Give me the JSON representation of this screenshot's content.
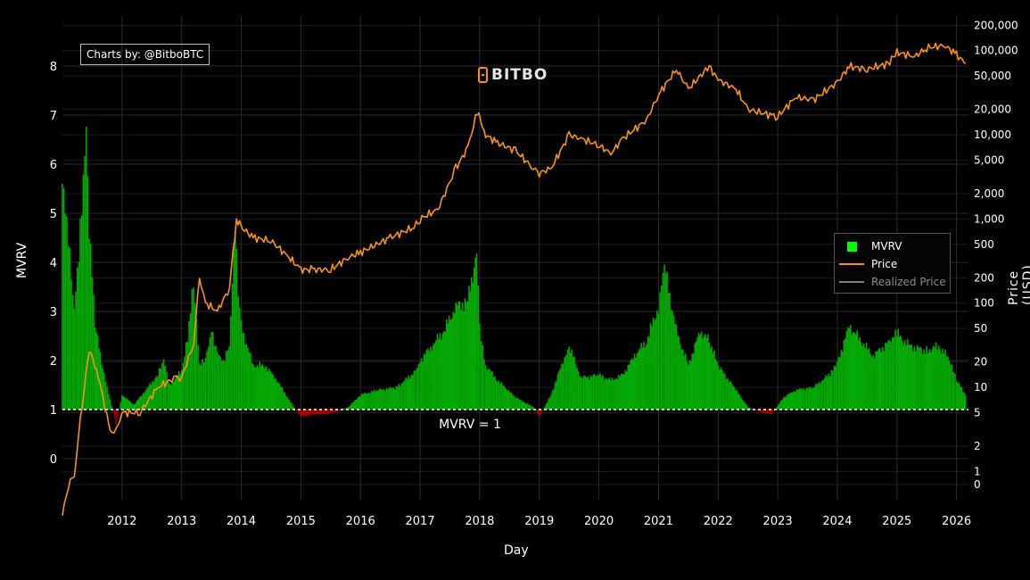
{
  "credit": "Charts by: @BitboBTC",
  "brand": "BITBO",
  "colors": {
    "mvrv_above": "#05a805",
    "mvrv_below": "#a00000",
    "price": "#f7931a",
    "realized": "#808080",
    "grid": "#2a2a2a"
  },
  "chart_data": {
    "type": "area",
    "xlabel": "Day",
    "ylabel": "MVRV",
    "y2label": "Price (USD)",
    "y_ticks": [
      "0",
      "1",
      "2",
      "3",
      "4",
      "5",
      "6",
      "7",
      "8"
    ],
    "ylim": [
      -0.5,
      8.8
    ],
    "y2_ticks": [
      "0",
      "1",
      "2",
      "5",
      "10",
      "20",
      "50",
      "100",
      "200",
      "500",
      "1,000",
      "2,000",
      "5,000",
      "10,000",
      "20,000",
      "50,000",
      "100,000",
      "200,000"
    ],
    "y2_scale": "log",
    "x_ticks": [
      "2012",
      "2013",
      "2014",
      "2015",
      "2016",
      "2017",
      "2018",
      "2019",
      "2020",
      "2021",
      "2022",
      "2023",
      "2024",
      "2025",
      "2026"
    ],
    "reference_line": {
      "value": 1,
      "label": "MVRV = 1"
    },
    "legend": [
      "MVRV",
      "Price",
      "Realized Price"
    ],
    "legend_position": "right",
    "series": [
      {
        "name": "MVRV",
        "x": [
          2011.0,
          2011.1,
          2011.2,
          2011.3,
          2011.4,
          2011.45,
          2011.55,
          2011.7,
          2011.8,
          2011.9,
          2012.0,
          2012.2,
          2012.4,
          2012.6,
          2012.7,
          2012.8,
          2013.0,
          2013.1,
          2013.2,
          2013.3,
          2013.4,
          2013.5,
          2013.6,
          2013.7,
          2013.8,
          2013.9,
          2013.95,
          2014.0,
          2014.2,
          2014.4,
          2014.6,
          2014.8,
          2015.0,
          2015.2,
          2015.4,
          2015.6,
          2015.8,
          2016.0,
          2016.3,
          2016.6,
          2016.9,
          2017.0,
          2017.2,
          2017.4,
          2017.6,
          2017.8,
          2017.95,
          2018.0,
          2018.1,
          2018.3,
          2018.6,
          2018.9,
          2019.0,
          2019.2,
          2019.4,
          2019.5,
          2019.7,
          2020.0,
          2020.2,
          2020.4,
          2020.6,
          2020.8,
          2021.0,
          2021.1,
          2021.3,
          2021.5,
          2021.7,
          2021.85,
          2022.0,
          2022.3,
          2022.5,
          2022.7,
          2022.9,
          2023.1,
          2023.3,
          2023.6,
          2023.9,
          2024.0,
          2024.2,
          2024.4,
          2024.6,
          2024.9,
          2025.0,
          2025.2,
          2025.5,
          2025.7,
          2025.9,
          2026.0,
          2026.15
        ],
        "values": [
          5.6,
          4.4,
          3.0,
          4.7,
          6.9,
          4.8,
          2.7,
          1.7,
          1.2,
          0.7,
          1.3,
          1.1,
          1.4,
          1.7,
          2.0,
          1.5,
          1.8,
          2.5,
          3.6,
          1.9,
          2.0,
          2.6,
          2.2,
          2.0,
          2.3,
          4.8,
          3.3,
          2.7,
          1.9,
          1.9,
          1.6,
          1.2,
          0.85,
          0.9,
          0.9,
          0.95,
          1.05,
          1.3,
          1.4,
          1.45,
          1.75,
          2.0,
          2.3,
          2.6,
          3.1,
          3.2,
          4.2,
          2.7,
          1.9,
          1.6,
          1.25,
          1.05,
          0.85,
          1.3,
          2.0,
          2.3,
          1.65,
          1.7,
          1.6,
          1.7,
          2.1,
          2.4,
          3.1,
          3.9,
          2.6,
          1.9,
          2.6,
          2.4,
          1.9,
          1.4,
          1.05,
          0.95,
          0.9,
          1.25,
          1.4,
          1.45,
          1.75,
          1.95,
          2.7,
          2.4,
          2.1,
          2.4,
          2.55,
          2.3,
          2.2,
          2.3,
          2.0,
          1.6,
          1.3
        ]
      },
      {
        "name": "Price",
        "x": [
          2011.0,
          2011.1,
          2011.2,
          2011.3,
          2011.4,
          2011.45,
          2011.6,
          2011.8,
          2011.9,
          2012.0,
          2012.3,
          2012.6,
          2012.9,
          2013.0,
          2013.2,
          2013.3,
          2013.4,
          2013.6,
          2013.8,
          2013.92,
          2014.0,
          2014.2,
          2014.5,
          2014.8,
          2015.0,
          2015.2,
          2015.5,
          2015.8,
          2016.0,
          2016.5,
          2016.9,
          2017.0,
          2017.3,
          2017.6,
          2017.8,
          2017.96,
          2018.1,
          2018.3,
          2018.6,
          2018.9,
          2019.0,
          2019.2,
          2019.5,
          2019.7,
          2020.0,
          2020.2,
          2020.4,
          2020.8,
          2021.0,
          2021.3,
          2021.5,
          2021.85,
          2022.0,
          2022.3,
          2022.5,
          2022.9,
          2023.0,
          2023.3,
          2023.6,
          2024.0,
          2024.2,
          2024.5,
          2024.85,
          2025.0,
          2025.3,
          2025.5,
          2025.8,
          2026.0,
          2026.15
        ],
        "values": [
          0.3,
          0.7,
          0.9,
          4,
          15,
          28,
          14,
          3,
          3,
          5,
          5,
          10,
          13,
          13,
          33,
          200,
          100,
          80,
          150,
          1000,
          800,
          600,
          550,
          350,
          250,
          250,
          250,
          350,
          400,
          600,
          800,
          1000,
          1300,
          4000,
          7000,
          19000,
          10000,
          8000,
          6500,
          4000,
          3500,
          4000,
          10000,
          9000,
          7500,
          6000,
          9000,
          15000,
          30000,
          60000,
          35000,
          65000,
          45000,
          35000,
          20000,
          17000,
          16500,
          28000,
          26000,
          42000,
          65000,
          60000,
          70000,
          95000,
          85000,
          108000,
          115000,
          90000,
          70000
        ]
      },
      {
        "name": "Realized Price",
        "values": []
      }
    ]
  }
}
